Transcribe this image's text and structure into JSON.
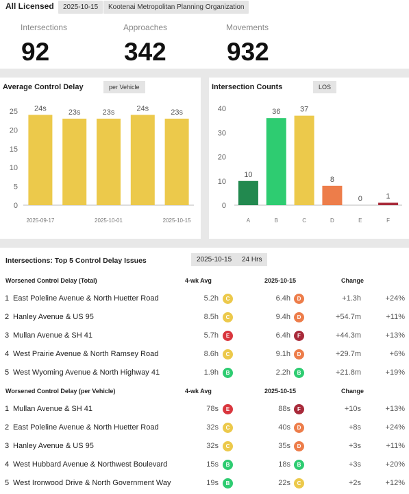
{
  "header": {
    "title": "All Licensed",
    "date_chip": "2025-10-15",
    "org_chip": "Kootenai Metropolitan Planning Organization",
    "stats": [
      {
        "label": "Intersections",
        "value": "92"
      },
      {
        "label": "Approaches",
        "value": "342"
      },
      {
        "label": "Movements",
        "value": "932"
      }
    ]
  },
  "delay_panel": {
    "title": "Average Control Delay",
    "chip": "per Vehicle"
  },
  "counts_panel": {
    "title": "Intersection Counts",
    "chip": "LOS"
  },
  "chart_data": [
    {
      "type": "bar",
      "title": "Average Control Delay",
      "categories": [
        "2025-09-17",
        "",
        "2025-10-01",
        "",
        "2025-10-15"
      ],
      "values": [
        24,
        23,
        23,
        24,
        23
      ],
      "data_labels": [
        "24s",
        "23s",
        "23s",
        "24s",
        "23s"
      ],
      "yticks": [
        0,
        5,
        10,
        15,
        20,
        25
      ],
      "ylim": [
        0,
        27
      ],
      "grid": false,
      "color": "#ecc94b"
    },
    {
      "type": "bar",
      "title": "Intersection Counts",
      "categories": [
        "A",
        "B",
        "C",
        "D",
        "E",
        "F"
      ],
      "values": [
        10,
        36,
        37,
        8,
        0,
        1
      ],
      "yticks": [
        0,
        10,
        20,
        30,
        40
      ],
      "ylim": [
        0,
        42
      ],
      "grid": false,
      "colors": [
        "#22894f",
        "#2ecc71",
        "#ecc94b",
        "#ed7d4a",
        "#999999",
        "#a82a3a"
      ]
    }
  ],
  "issues": {
    "title": "Intersections: Top 5 Control Delay Issues",
    "date_chip": "2025-10-15",
    "range_chip": "24 Hrs",
    "sections": [
      {
        "heading": "Worsened Control Delay (Total)",
        "col_avg": "4-wk Avg",
        "col_date": "2025-10-15",
        "col_change": "Change",
        "rows": [
          {
            "rank": "1",
            "name": "East Poleline Avenue & North Huetter Road",
            "avg": "5.2h",
            "avg_grade": "C",
            "cur": "6.4h",
            "cur_grade": "D",
            "change": "+1.3h",
            "pct": "+24%"
          },
          {
            "rank": "2",
            "name": "Hanley Avenue & US 95",
            "avg": "8.5h",
            "avg_grade": "C",
            "cur": "9.4h",
            "cur_grade": "D",
            "change": "+54.7m",
            "pct": "+11%"
          },
          {
            "rank": "3",
            "name": "Mullan Avenue & SH 41",
            "avg": "5.7h",
            "avg_grade": "E",
            "cur": "6.4h",
            "cur_grade": "F",
            "change": "+44.3m",
            "pct": "+13%"
          },
          {
            "rank": "4",
            "name": "West Prairie Avenue & North Ramsey Road",
            "avg": "8.6h",
            "avg_grade": "C",
            "cur": "9.1h",
            "cur_grade": "D",
            "change": "+29.7m",
            "pct": "+6%"
          },
          {
            "rank": "5",
            "name": "West Wyoming Avenue & North Highway 41",
            "avg": "1.9h",
            "avg_grade": "B",
            "cur": "2.2h",
            "cur_grade": "B",
            "change": "+21.8m",
            "pct": "+19%"
          }
        ]
      },
      {
        "heading": "Worsened Control Delay (per Vehicle)",
        "col_avg": "4-wk Avg",
        "col_date": "2025-10-15",
        "col_change": "Change",
        "rows": [
          {
            "rank": "1",
            "name": "Mullan Avenue & SH 41",
            "avg": "78s",
            "avg_grade": "E",
            "cur": "88s",
            "cur_grade": "F",
            "change": "+10s",
            "pct": "+13%"
          },
          {
            "rank": "2",
            "name": "East Poleline Avenue & North Huetter Road",
            "avg": "32s",
            "avg_grade": "C",
            "cur": "40s",
            "cur_grade": "D",
            "change": "+8s",
            "pct": "+24%"
          },
          {
            "rank": "3",
            "name": "Hanley Avenue & US 95",
            "avg": "32s",
            "avg_grade": "C",
            "cur": "35s",
            "cur_grade": "D",
            "change": "+3s",
            "pct": "+11%"
          },
          {
            "rank": "4",
            "name": "West Hubbard Avenue & Northwest Boulevard",
            "avg": "15s",
            "avg_grade": "B",
            "cur": "18s",
            "cur_grade": "B",
            "change": "+3s",
            "pct": "+20%"
          },
          {
            "rank": "5",
            "name": "West Ironwood Drive & North Government Way",
            "avg": "19s",
            "avg_grade": "B",
            "cur": "22s",
            "cur_grade": "C",
            "change": "+2s",
            "pct": "+12%"
          }
        ]
      }
    ]
  },
  "grade_colors": {
    "A": "#22894f",
    "B": "#2ecc71",
    "C": "#ecc94b",
    "D": "#ed7d4a",
    "E": "#d9363e",
    "F": "#a82a3a"
  }
}
